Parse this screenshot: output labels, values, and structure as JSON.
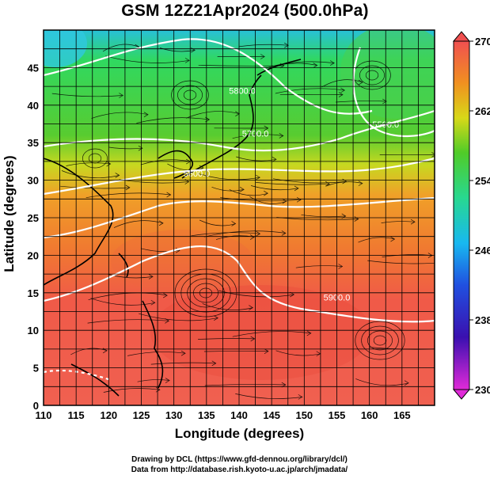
{
  "title": "GSM 12Z21Apr2024 (500.0hPa)",
  "xlabel": "Longitude (degrees)",
  "ylabel": "Latitude  (degrees)",
  "credits": {
    "line1": "Drawing by DCL (https://www.gfd-dennou.org/library/dcl/)",
    "line2": "Data from http://database.rish.kyoto-u.ac.jp/arch/jmadata/"
  },
  "chart_data": {
    "type": "heatmap",
    "xlim": [
      110,
      170
    ],
    "ylim": [
      0,
      50
    ],
    "x_ticks": [
      110,
      115,
      120,
      125,
      130,
      135,
      140,
      145,
      150,
      155,
      160,
      165
    ],
    "y_ticks": [
      0,
      5,
      10,
      15,
      20,
      25,
      30,
      35,
      40,
      45
    ],
    "grid": true,
    "colorbar": {
      "min": 230,
      "max": 270,
      "ticks": [
        230,
        238,
        246,
        254,
        262,
        270
      ],
      "colors": [
        "#e02ad8",
        "#2d10b8",
        "#1aa2f0",
        "#22d8a0",
        "#48cc28",
        "#d8d818",
        "#f09020",
        "#f05050"
      ]
    },
    "contour_labels": [
      {
        "text": "5600.0",
        "lon": 133.5,
        "lat": 30.5
      },
      {
        "text": "5700.0",
        "lon": 142.5,
        "lat": 35.8
      },
      {
        "text": "5500.0",
        "lon": 162.5,
        "lat": 37.0
      },
      {
        "text": "5800.0",
        "lon": 140.5,
        "lat": 41.5
      },
      {
        "text": "5900.0",
        "lon": 155.0,
        "lat": 14.0
      }
    ]
  }
}
